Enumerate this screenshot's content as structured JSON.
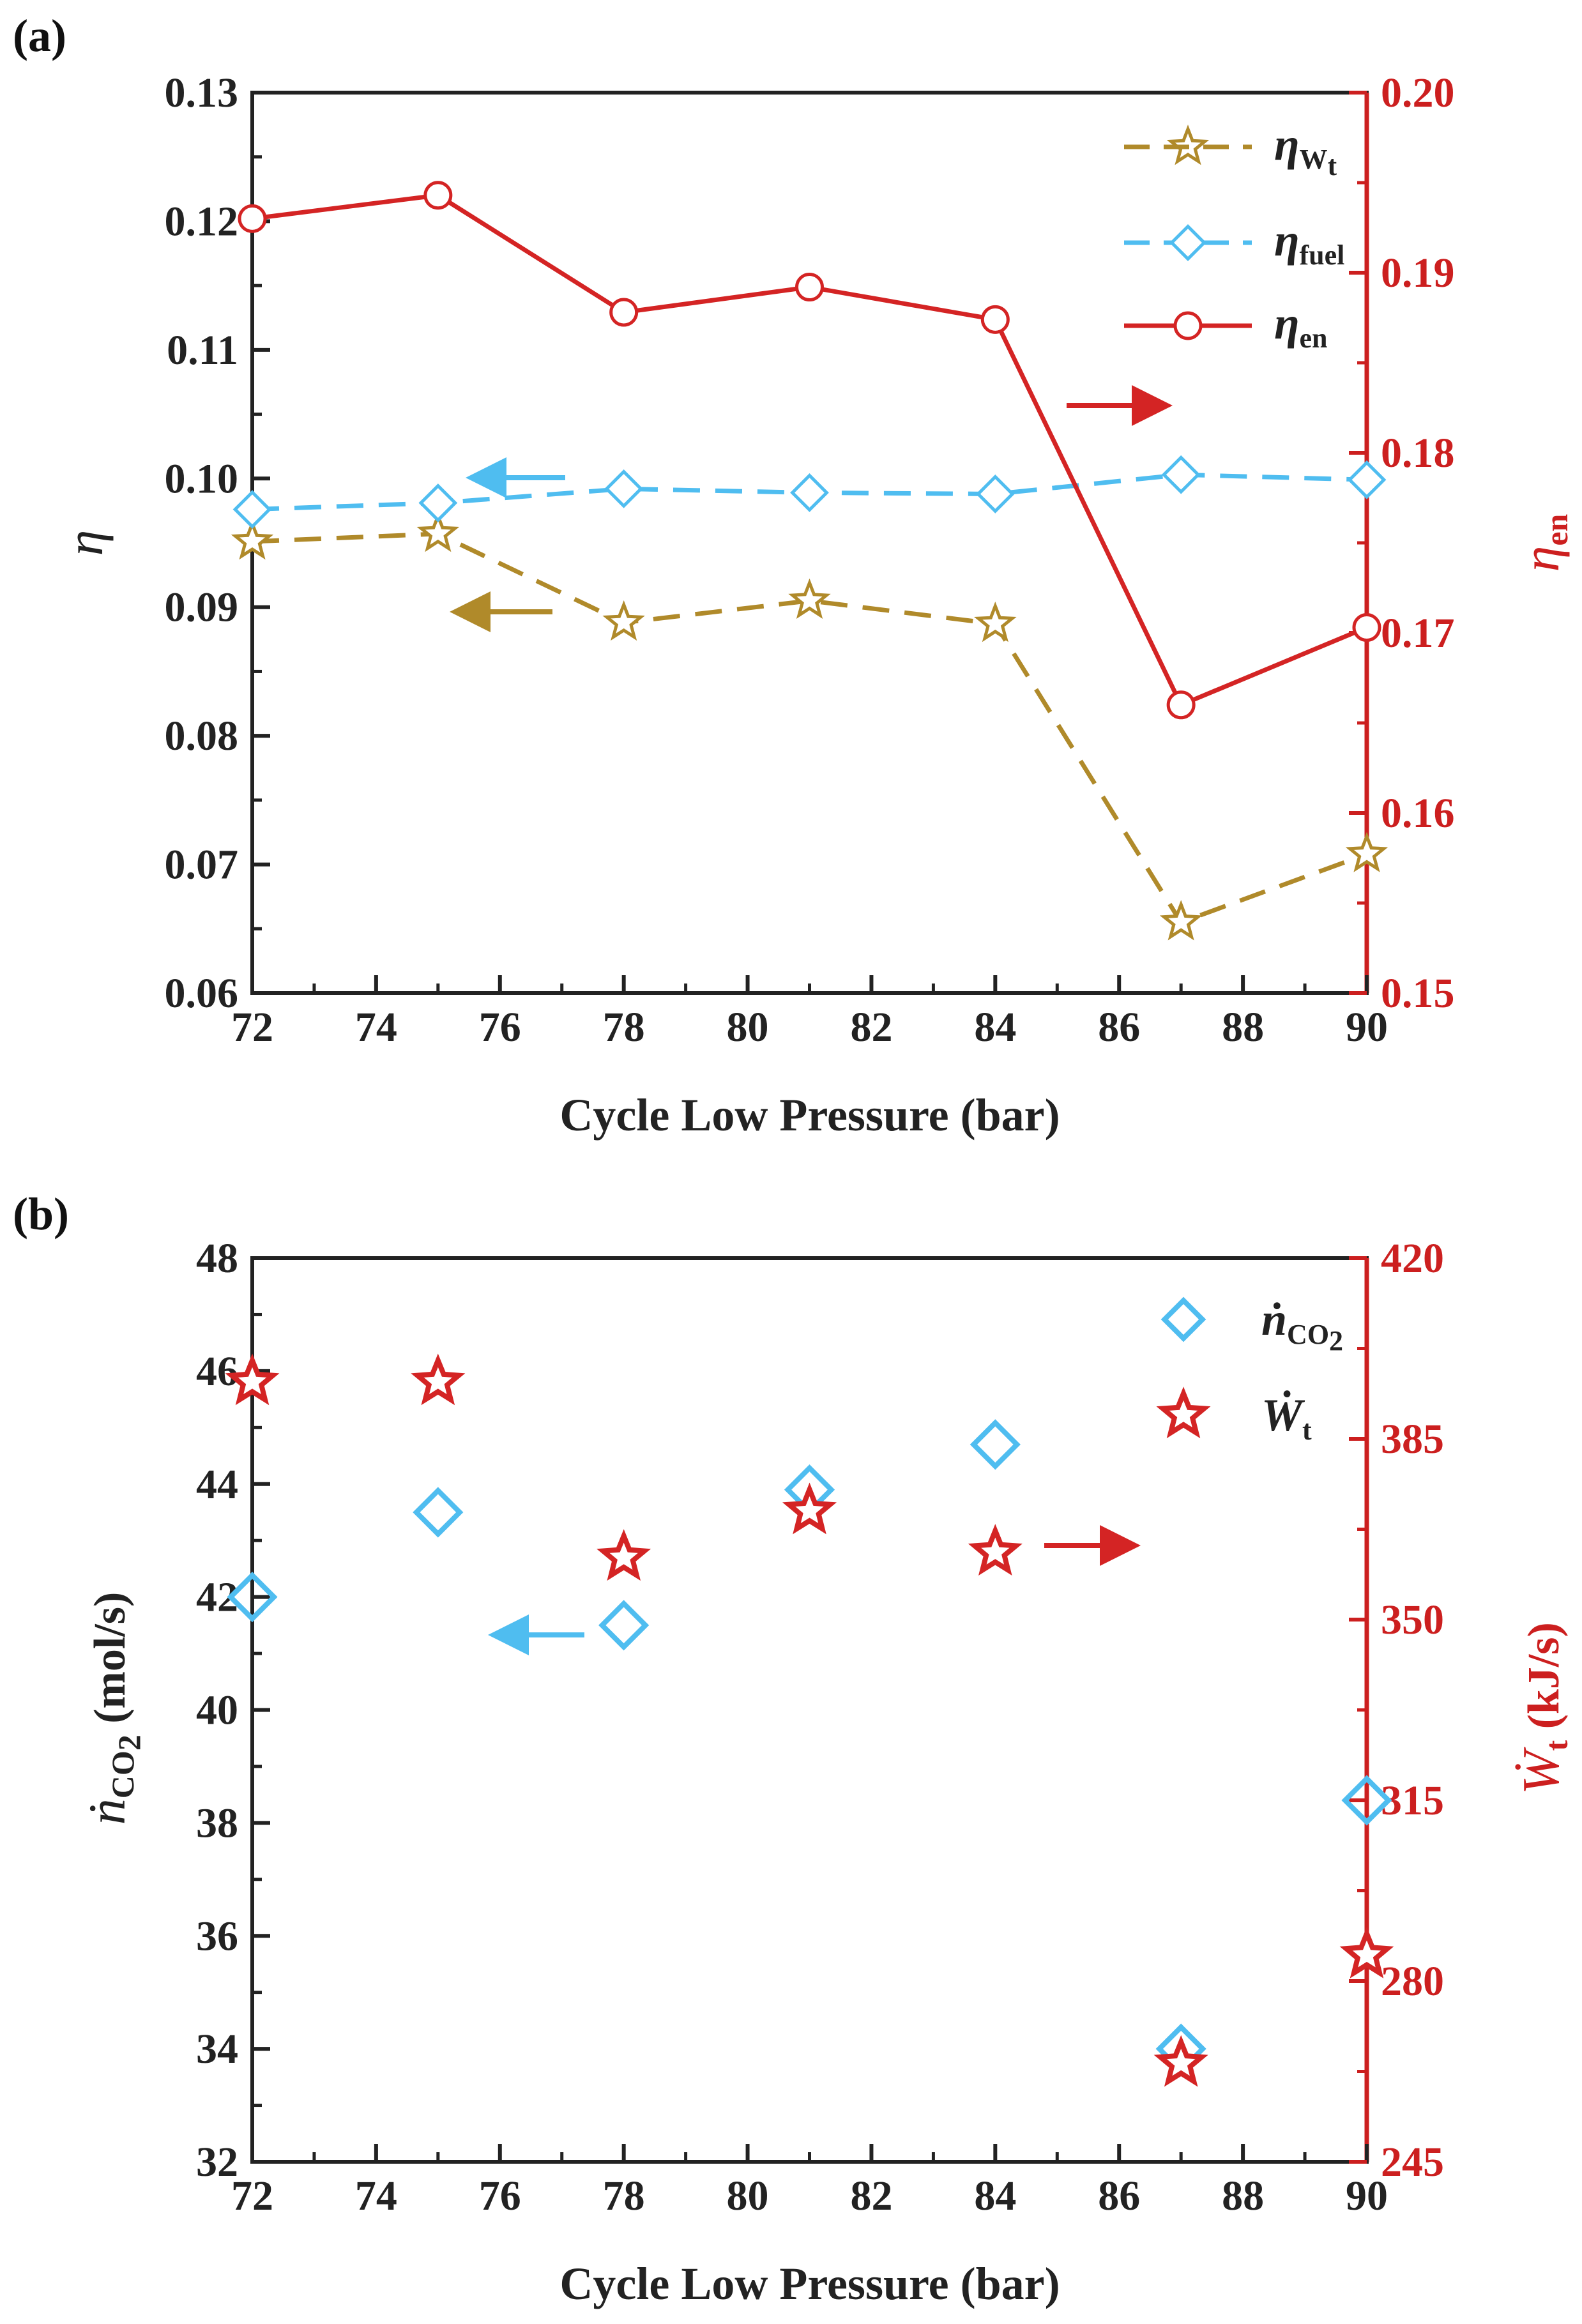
{
  "chart_data": [
    {
      "id": "a",
      "type": "line",
      "panel_label": "(a)",
      "xlabel": "Cycle Low Pressure (bar)",
      "ylabel": "η",
      "ylabel_right": "η",
      "ylabel_right_sub": "en",
      "xlim": [
        72,
        90
      ],
      "ylim": [
        0.06,
        0.13
      ],
      "ylim_right": [
        0.15,
        0.2
      ],
      "xticks": [
        "72",
        "74",
        "76",
        "78",
        "80",
        "82",
        "84",
        "86",
        "88",
        "90"
      ],
      "yticks": [
        "0.06",
        "0.07",
        "0.08",
        "0.09",
        "0.10",
        "0.11",
        "0.12",
        "0.13"
      ],
      "yticks_right": [
        "0.15",
        "0.16",
        "0.17",
        "0.18",
        "0.19",
        "0.20"
      ],
      "x": [
        72,
        75,
        78,
        81,
        84,
        87,
        90
      ],
      "series": [
        {
          "name": "η",
          "sub": "W",
          "subsub": "t",
          "axis": "left",
          "marker": "star",
          "dash": true,
          "color": "#b08a2a",
          "values": [
            0.0951,
            0.0957,
            0.0888,
            0.0905,
            0.0887,
            0.0655,
            0.0708
          ]
        },
        {
          "name": "η",
          "sub": "fuel",
          "axis": "left",
          "marker": "diamond",
          "dash": true,
          "color": "#4fbdf0",
          "values": [
            0.0976,
            0.0981,
            0.0992,
            0.0989,
            0.0988,
            0.1003,
            0.0999
          ]
        },
        {
          "name": "η",
          "sub": "en",
          "axis": "right",
          "marker": "circle",
          "dash": false,
          "color": "#d42424",
          "values": [
            0.193,
            0.1943,
            0.1878,
            0.1892,
            0.1874,
            0.166,
            0.1703
          ]
        }
      ]
    },
    {
      "id": "b",
      "type": "scatter",
      "panel_label": "(b)",
      "xlabel": "Cycle Low Pressure (bar)",
      "ylabel_sym": "ṅ",
      "ylabel_sub": "CO",
      "ylabel_subsub": "2",
      "ylabel_unit": " (mol/s)",
      "ylabel_right_sym": "Ẇ",
      "ylabel_right_sub": "t",
      "ylabel_right_unit": " (kJ/s)",
      "xlim": [
        72,
        90
      ],
      "ylim": [
        32,
        48
      ],
      "ylim_right": [
        245,
        420
      ],
      "xticks": [
        "72",
        "74",
        "76",
        "78",
        "80",
        "82",
        "84",
        "86",
        "88",
        "90"
      ],
      "yticks": [
        "32",
        "34",
        "36",
        "38",
        "40",
        "42",
        "44",
        "46",
        "48"
      ],
      "yticks_right": [
        "245",
        "280",
        "315",
        "350",
        "385",
        "420"
      ],
      "x": [
        72,
        75,
        78,
        81,
        84,
        87,
        90
      ],
      "series": [
        {
          "name": "ṅ",
          "sub": "CO",
          "subsub": "2",
          "axis": "left",
          "marker": "diamond",
          "color": "#4fbdf0",
          "values": [
            42.0,
            43.5,
            41.5,
            43.9,
            44.7,
            34.0,
            38.4
          ]
        },
        {
          "name": "Ẇ",
          "sub": "t",
          "axis": "right",
          "marker": "star",
          "color": "#d42424",
          "values": [
            396,
            396,
            362,
            371,
            363,
            264,
            285
          ]
        }
      ]
    }
  ]
}
